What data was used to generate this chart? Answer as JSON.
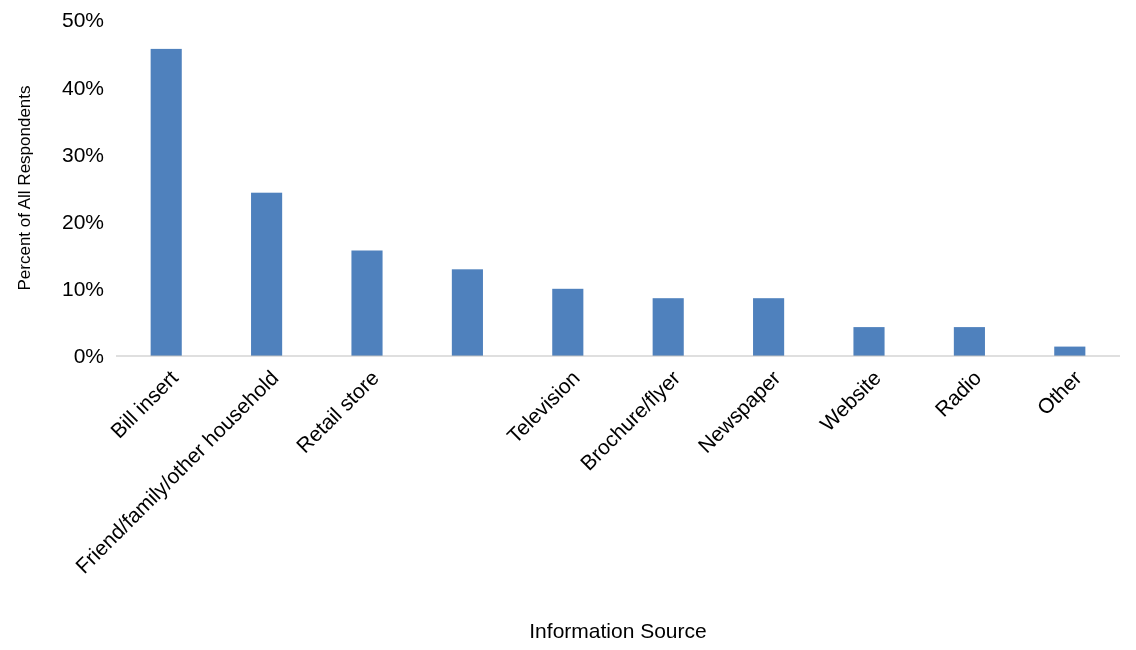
{
  "chart_data": {
    "type": "bar",
    "xlabel": "Information Source",
    "ylabel": "Percent of All Respondents",
    "categories": [
      "Bill insert",
      "Friend/family/other household",
      "Retail store",
      null,
      "Television",
      "Brochure/flyer",
      "Newspaper",
      "Website",
      "Radio",
      "Other"
    ],
    "values": [
      45.7,
      24.3,
      15.7,
      12.9,
      10.0,
      8.6,
      8.6,
      4.3,
      4.3,
      1.4
    ],
    "color": "#4f81bd",
    "ylim": [
      0,
      50
    ],
    "yticks": [
      {
        "value": 0,
        "label": "0%"
      },
      {
        "value": 10,
        "label": "10%"
      },
      {
        "value": 20,
        "label": "20%"
      },
      {
        "value": 30,
        "label": "30%"
      },
      {
        "value": 40,
        "label": "40%"
      },
      {
        "value": 50,
        "label": "50%"
      }
    ],
    "grid": false
  }
}
